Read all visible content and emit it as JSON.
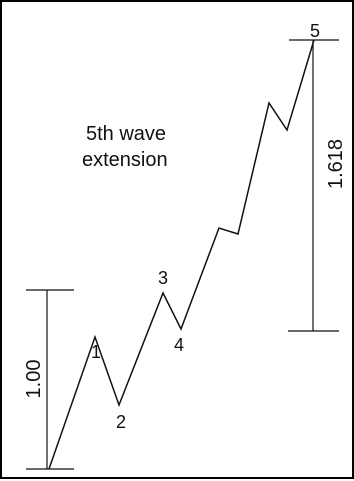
{
  "diagram": {
    "wave_labels": [
      "1",
      "2",
      "3",
      "4",
      "5"
    ],
    "annotation": {
      "line1": "5th wave",
      "line2": "extension"
    },
    "measure_left": "1.00",
    "measure_right": "1.618"
  }
}
